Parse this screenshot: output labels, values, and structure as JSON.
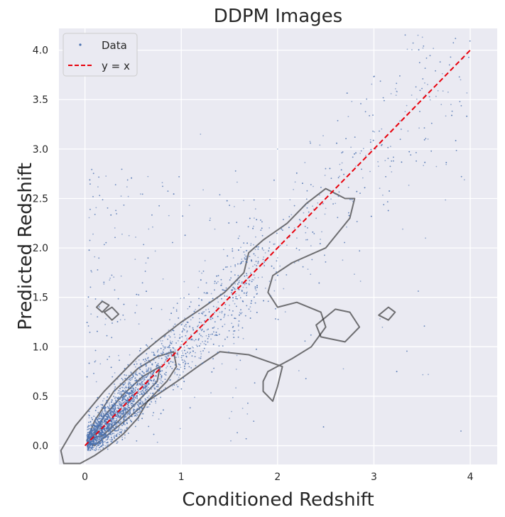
{
  "chart_data": {
    "type": "scatter",
    "title": "DDPM Images",
    "xlabel": "Conditioned Redshift",
    "ylabel": "Predicted Redshift",
    "xlim": [
      -0.27,
      4.28
    ],
    "ylim": [
      -0.19,
      4.22
    ],
    "x_ticks": [
      0,
      1,
      2,
      3,
      4
    ],
    "x_tick_labels": [
      "0",
      "1",
      "2",
      "3",
      "4"
    ],
    "y_ticks": [
      0.0,
      0.5,
      1.0,
      1.5,
      2.0,
      2.5,
      3.0,
      3.5,
      4.0
    ],
    "y_tick_labels": [
      "0.0",
      "0.5",
      "1.0",
      "1.5",
      "2.0",
      "2.5",
      "3.0",
      "3.5",
      "4.0"
    ],
    "grid": true,
    "background": "#eaeaf2",
    "legend": {
      "position": "top-left",
      "entries": [
        {
          "label": "Data",
          "marker": "point",
          "color": "#4c72b0"
        },
        {
          "label": "y = x",
          "marker": "dashed-line",
          "color": "#e8000b"
        }
      ]
    },
    "series": [
      {
        "name": "Data",
        "kind": "scatter",
        "color": "#4c72b0",
        "description_points": [
          [
            0.05,
            0.02
          ],
          [
            0.1,
            0.08
          ],
          [
            0.15,
            0.12
          ],
          [
            0.2,
            0.18
          ],
          [
            0.25,
            0.22
          ],
          [
            0.3,
            0.28
          ],
          [
            0.35,
            0.34
          ],
          [
            0.4,
            0.4
          ],
          [
            0.45,
            0.45
          ],
          [
            0.5,
            0.5
          ],
          [
            0.55,
            0.55
          ],
          [
            0.6,
            0.62
          ],
          [
            0.65,
            0.66
          ],
          [
            0.7,
            0.72
          ],
          [
            0.75,
            0.78
          ],
          [
            0.8,
            0.82
          ],
          [
            0.85,
            0.88
          ],
          [
            0.9,
            0.92
          ],
          [
            1.0,
            1.02
          ],
          [
            1.1,
            1.12
          ],
          [
            1.2,
            1.18
          ],
          [
            1.3,
            1.28
          ],
          [
            1.4,
            1.35
          ],
          [
            1.5,
            1.42
          ],
          [
            1.6,
            1.52
          ],
          [
            1.8,
            1.7
          ],
          [
            2.0,
            1.9
          ],
          [
            2.2,
            2.1
          ],
          [
            2.4,
            2.3
          ],
          [
            2.5,
            2.4
          ],
          [
            2.6,
            2.45
          ],
          [
            3.8,
            3.45
          ],
          [
            3.9,
            3.7
          ],
          [
            3.7,
            3.45
          ],
          [
            1.2,
            3.15
          ],
          [
            2.0,
            3.0
          ]
        ]
      },
      {
        "name": "y = x",
        "kind": "line",
        "style": "dashed",
        "color": "#e8000b",
        "x": [
          0,
          4
        ],
        "y": [
          0,
          4
        ]
      }
    ],
    "contours": [
      {
        "level": "outer",
        "points": [
          [
            -0.22,
            -0.18
          ],
          [
            -0.25,
            -0.05
          ],
          [
            -0.1,
            0.2
          ],
          [
            0.2,
            0.55
          ],
          [
            0.55,
            0.9
          ],
          [
            0.8,
            1.1
          ],
          [
            1.0,
            1.25
          ],
          [
            1.2,
            1.38
          ],
          [
            1.45,
            1.55
          ],
          [
            1.65,
            1.75
          ],
          [
            1.7,
            1.95
          ],
          [
            1.85,
            2.08
          ],
          [
            2.1,
            2.25
          ],
          [
            2.3,
            2.45
          ],
          [
            2.5,
            2.6
          ],
          [
            2.6,
            2.55
          ],
          [
            2.7,
            2.5
          ],
          [
            2.8,
            2.5
          ],
          [
            2.75,
            2.3
          ],
          [
            2.5,
            2.0
          ],
          [
            2.15,
            1.85
          ],
          [
            1.95,
            1.72
          ],
          [
            1.9,
            1.55
          ],
          [
            2.0,
            1.4
          ],
          [
            2.2,
            1.45
          ],
          [
            2.45,
            1.35
          ],
          [
            2.5,
            1.2
          ],
          [
            2.35,
            1.0
          ],
          [
            2.15,
            0.88
          ],
          [
            1.9,
            0.75
          ],
          [
            1.85,
            0.65
          ],
          [
            1.85,
            0.55
          ],
          [
            1.95,
            0.45
          ],
          [
            2.0,
            0.6
          ],
          [
            2.05,
            0.8
          ],
          [
            1.7,
            0.92
          ],
          [
            1.4,
            0.95
          ],
          [
            1.2,
            0.82
          ],
          [
            1.0,
            0.68
          ],
          [
            0.85,
            0.58
          ],
          [
            0.65,
            0.45
          ],
          [
            0.55,
            0.28
          ],
          [
            0.4,
            0.12
          ],
          [
            0.25,
            0.0
          ],
          [
            0.1,
            -0.1
          ],
          [
            -0.05,
            -0.18
          ],
          [
            -0.22,
            -0.18
          ]
        ]
      },
      {
        "level": "mid",
        "points": [
          [
            0.02,
            0.05
          ],
          [
            0.1,
            0.25
          ],
          [
            0.3,
            0.55
          ],
          [
            0.55,
            0.78
          ],
          [
            0.75,
            0.9
          ],
          [
            0.92,
            0.95
          ],
          [
            0.95,
            0.8
          ],
          [
            0.85,
            0.65
          ],
          [
            0.65,
            0.45
          ],
          [
            0.45,
            0.28
          ],
          [
            0.25,
            0.12
          ],
          [
            0.1,
            0.0
          ],
          [
            0.02,
            0.05
          ]
        ]
      },
      {
        "level": "inner",
        "points": [
          [
            0.08,
            0.08
          ],
          [
            0.2,
            0.3
          ],
          [
            0.4,
            0.52
          ],
          [
            0.6,
            0.7
          ],
          [
            0.78,
            0.8
          ],
          [
            0.75,
            0.65
          ],
          [
            0.55,
            0.45
          ],
          [
            0.35,
            0.25
          ],
          [
            0.18,
            0.1
          ],
          [
            0.08,
            0.08
          ]
        ]
      },
      {
        "level": "small1",
        "points": [
          [
            0.12,
            1.4
          ],
          [
            0.18,
            1.46
          ],
          [
            0.25,
            1.42
          ],
          [
            0.18,
            1.35
          ],
          [
            0.12,
            1.4
          ]
        ]
      },
      {
        "level": "small2",
        "points": [
          [
            0.2,
            1.35
          ],
          [
            0.28,
            1.4
          ],
          [
            0.35,
            1.33
          ],
          [
            0.28,
            1.27
          ],
          [
            0.2,
            1.35
          ]
        ]
      },
      {
        "level": "small3",
        "points": [
          [
            3.05,
            1.32
          ],
          [
            3.15,
            1.4
          ],
          [
            3.22,
            1.35
          ],
          [
            3.15,
            1.27
          ],
          [
            3.05,
            1.32
          ]
        ]
      },
      {
        "level": "arm",
        "points": [
          [
            2.4,
            1.22
          ],
          [
            2.6,
            1.38
          ],
          [
            2.75,
            1.35
          ],
          [
            2.85,
            1.2
          ],
          [
            2.7,
            1.05
          ],
          [
            2.45,
            1.1
          ],
          [
            2.4,
            1.22
          ]
        ]
      }
    ]
  }
}
